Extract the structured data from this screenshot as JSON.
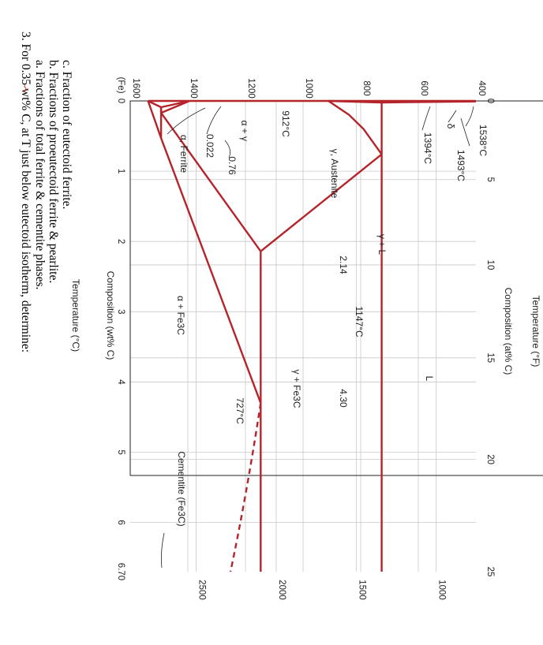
{
  "diagram": {
    "axis_titles": {
      "top_celsius": "Temperature (°C)",
      "bottom_fahrenheit": "Temperature (°F)",
      "left_composition_wt": "Composition (wt% C)",
      "right_composition_at": "Composition (at% C)"
    },
    "celsius_ticks": [
      "1600",
      "1400",
      "1200",
      "1000",
      "800",
      "600",
      "400"
    ],
    "fahrenheit_ticks": [
      "2500",
      "2000",
      "1500",
      "1000"
    ],
    "wt_ticks": [
      "0",
      "1",
      "2",
      "3",
      "4",
      "5",
      "6",
      "6.70"
    ],
    "fe_label": "(Fe)",
    "at_ticks": [
      "0",
      "5",
      "10",
      "15",
      "20",
      "25"
    ],
    "labels": {
      "t1538": "1538°C",
      "t1493": "1493°C",
      "t1394": "1394°C",
      "t912": "912°C",
      "t1147": "1147°C",
      "t727": "727°C",
      "c076": "0.76",
      "c0022": "0.022",
      "c214": "2.14",
      "c430": "4.30",
      "austenite": "γ, Austenite",
      "ferrite": "α, Ferrite",
      "gamma_l": "γ + L",
      "liquid": "L",
      "delta": "δ",
      "gamma_fe3c": "γ + Fe3C",
      "alpha_fe3c": "α + Fe3C",
      "cementite": "Cementite (Fe3C)",
      "alpha_gamma_a": "α",
      "alpha_gamma_plus": "+",
      "alpha_gamma_g": "γ"
    }
  },
  "question": {
    "stem": "3.  For 0.35 wt% C, at T just below eutectoid isotherm, determine:",
    "items": [
      "a.  Fractions of total ferrite & cementite phases.",
      "b.  Fractions of proeutectoid ferrite & pearlite.",
      "c.  Fraction of eutectoid ferrite."
    ]
  }
}
